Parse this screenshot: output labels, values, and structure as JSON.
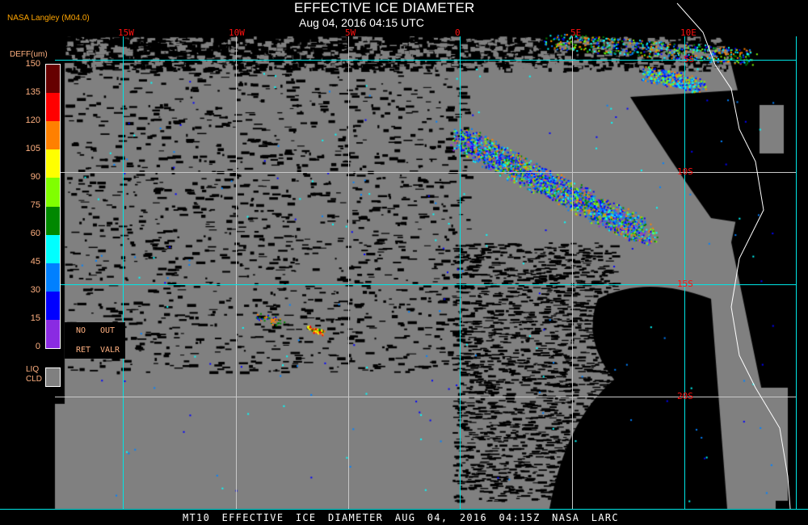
{
  "header": {
    "title": "EFFECTIVE ICE DIAMETER",
    "subtitle": "Aug 04, 2016 04:15 UTC",
    "org": "NASA Langley (M04.0)"
  },
  "map": {
    "longitude_labels": [
      "15W",
      "10W",
      "5W",
      "0",
      "5E",
      "10E"
    ],
    "latitude_labels": [
      "5S",
      "10S",
      "15S",
      "20S"
    ],
    "grid_color": "#00e5e5",
    "label_color": "#ff1010",
    "clear_color": "#000000",
    "liquid_cloud_color": "#808080"
  },
  "legend": {
    "units": "DEFF(um)",
    "ticks": [
      "0",
      "15",
      "30",
      "45",
      "60",
      "75",
      "90",
      "105",
      "120",
      "135",
      "150"
    ],
    "colors": [
      "#8a2be2",
      "#0000ff",
      "#0080ff",
      "#00ffff",
      "#008800",
      "#80ff00",
      "#ffff00",
      "#ff8000",
      "#ff0000",
      "#660000"
    ],
    "no_ret": [
      "NO",
      "RET"
    ],
    "out_valr": [
      "OUT",
      "VALR"
    ],
    "liq_cld": [
      "LIQ",
      "CLD"
    ]
  },
  "footer": "MT10  EFFECTIVE ICE DIAMETER   AUG 04, 2016 04:15Z   NASA LARC"
}
